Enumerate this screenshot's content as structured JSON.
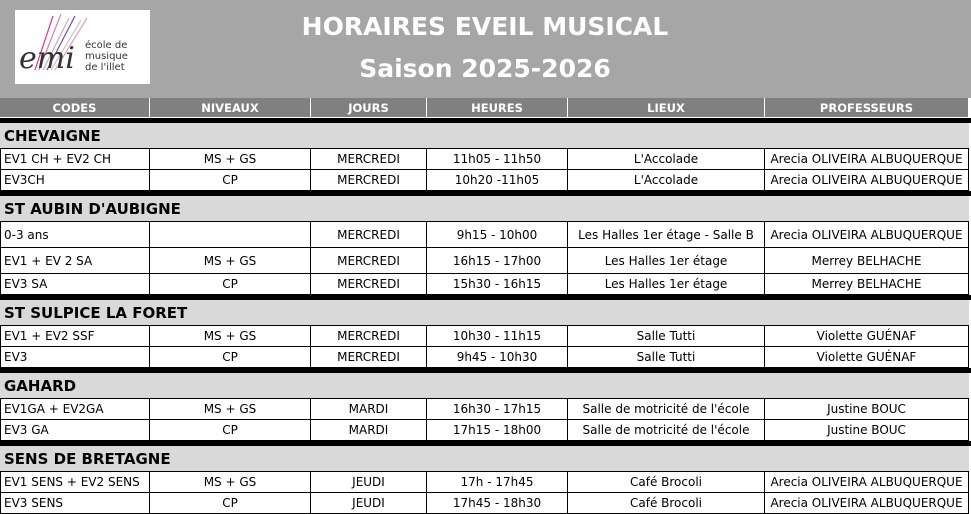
{
  "header": {
    "title": "HORAIRES EVEIL MUSICAL",
    "subtitle": "Saison 2025-2026"
  },
  "logo": {
    "mark": "emi",
    "lines": [
      "école de",
      "musique",
      "de l'illet"
    ]
  },
  "table": {
    "columns": [
      "CODES",
      "NIVEAUX",
      "JOURS",
      "HEURES",
      "LIEUX",
      "PROFESSEURS"
    ],
    "sections": [
      {
        "name": "CHEVAIGNE",
        "rows": [
          [
            "EV1 CH + EV2 CH",
            "MS + GS",
            "MERCREDI",
            "11h05 - 11h50",
            "L'Accolade",
            "Arecia OLIVEIRA ALBUQUERQUE"
          ],
          [
            "EV3CH",
            "CP",
            "MERCREDI",
            "10h20 -11h05",
            "L'Accolade",
            "Arecia OLIVEIRA ALBUQUERQUE"
          ]
        ]
      },
      {
        "name": "ST AUBIN D'AUBIGNE",
        "rows": [
          [
            "0-3 ans",
            null,
            "MERCREDI",
            "9h15 - 10h00",
            "Les Halles 1er étage - Salle B",
            "Arecia OLIVEIRA ALBUQUERQUE"
          ],
          [
            "EV1 + EV 2 SA",
            "MS + GS",
            "MERCREDI",
            "16h15 - 17h00",
            "Les Halles 1er étage",
            "Merrey BELHACHE"
          ],
          [
            "EV3 SA",
            "CP",
            "MERCREDI",
            "15h30 - 16h15",
            "Les Halles 1er étage",
            "Merrey BELHACHE"
          ]
        ]
      },
      {
        "name": "ST SULPICE LA FORET",
        "rows": [
          [
            "EV1 + EV2 SSF",
            "MS + GS",
            "MERCREDI",
            "10h30 - 11h15",
            "Salle Tutti",
            "Violette GUÉNAF"
          ],
          [
            "EV3",
            "CP",
            "MERCREDI",
            "9h45 - 10h30",
            "Salle Tutti",
            "Violette GUÉNAF"
          ]
        ]
      },
      {
        "name": "GAHARD",
        "rows": [
          [
            "EV1GA + EV2GA",
            "MS + GS",
            "MARDI",
            "16h30 - 17h15",
            "Salle de motricité de l'école",
            "Justine BOUC"
          ],
          [
            "EV3 GA",
            "CP",
            "MARDI",
            "17h15 - 18h00",
            "Salle de motricité de l'école",
            "Justine BOUC"
          ]
        ]
      },
      {
        "name": "SENS DE BRETAGNE",
        "rows": [
          [
            "EV1 SENS + EV2 SENS",
            "MS + GS",
            "JEUDI",
            "17h - 17h45",
            "Café Brocoli",
            "Arecia OLIVEIRA ALBUQUERQUE"
          ],
          [
            "EV3 SENS",
            "CP",
            "JEUDI",
            "17h45 - 18h30",
            "Café Brocoli",
            "Arecia OLIVEIRA ALBUQUERQUE"
          ]
        ]
      }
    ]
  }
}
